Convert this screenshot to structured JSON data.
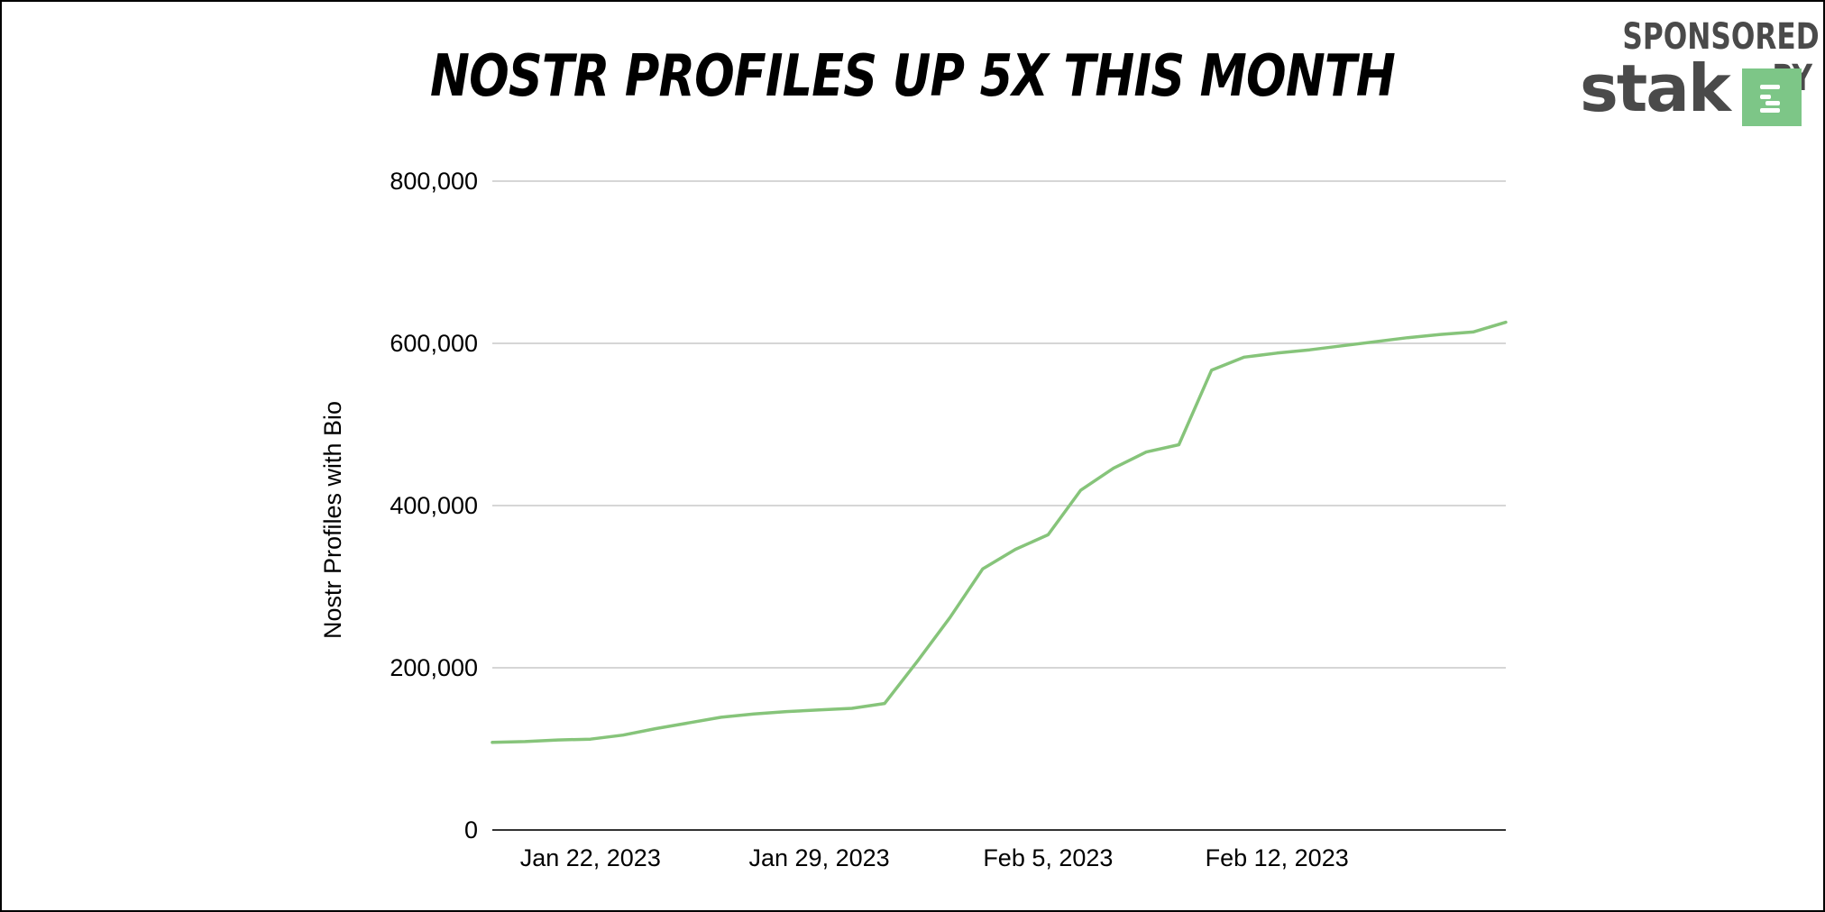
{
  "header": {
    "title": "NOSTR PROFILES UP 5X THIS MONTH"
  },
  "sponsor": {
    "label": "SPONSORED BY",
    "brand": "stak",
    "logo_color": "#7dc687",
    "icon": "stak-logo-icon"
  },
  "chart_data": {
    "type": "line",
    "ylabel": "Nostr Profiles with Bio",
    "xlabel": "",
    "ylim": [
      0,
      800000
    ],
    "yticks": [
      {
        "value": 0,
        "label": "0"
      },
      {
        "value": 200000,
        "label": "200,000"
      },
      {
        "value": 400000,
        "label": "400,000"
      },
      {
        "value": 600000,
        "label": "600,000"
      },
      {
        "value": 800000,
        "label": "800,000"
      }
    ],
    "xlim": [
      "2023-01-19",
      "2023-02-19"
    ],
    "xticks": [
      {
        "date": "2023-01-22",
        "label": "Jan 22, 2023"
      },
      {
        "date": "2023-01-29",
        "label": "Jan 29, 2023"
      },
      {
        "date": "2023-02-05",
        "label": "Feb 5, 2023"
      },
      {
        "date": "2023-02-12",
        "label": "Feb 12, 2023"
      }
    ],
    "grid": true,
    "line_color": "#86c47a",
    "series": [
      {
        "x": [
          "2023-01-19",
          "2023-01-20",
          "2023-01-21",
          "2023-01-22",
          "2023-01-23",
          "2023-01-24",
          "2023-01-25",
          "2023-01-26",
          "2023-01-27",
          "2023-01-28",
          "2023-01-29",
          "2023-01-30",
          "2023-01-31",
          "2023-02-01",
          "2023-02-02",
          "2023-02-03",
          "2023-02-04",
          "2023-02-05",
          "2023-02-06",
          "2023-02-07",
          "2023-02-08",
          "2023-02-09",
          "2023-02-10",
          "2023-02-11",
          "2023-02-12",
          "2023-02-13",
          "2023-02-14",
          "2023-02-15",
          "2023-02-16",
          "2023-02-17",
          "2023-02-18",
          "2023-02-19"
        ],
        "values": [
          108000,
          109000,
          111000,
          112000,
          117000,
          125000,
          132000,
          139000,
          143000,
          146000,
          148000,
          150000,
          156000,
          208000,
          262000,
          322000,
          346000,
          364000,
          419000,
          446000,
          466000,
          475000,
          567000,
          583000,
          588000,
          592000,
          597000,
          602000,
          607000,
          611000,
          614000,
          626000
        ]
      }
    ]
  }
}
